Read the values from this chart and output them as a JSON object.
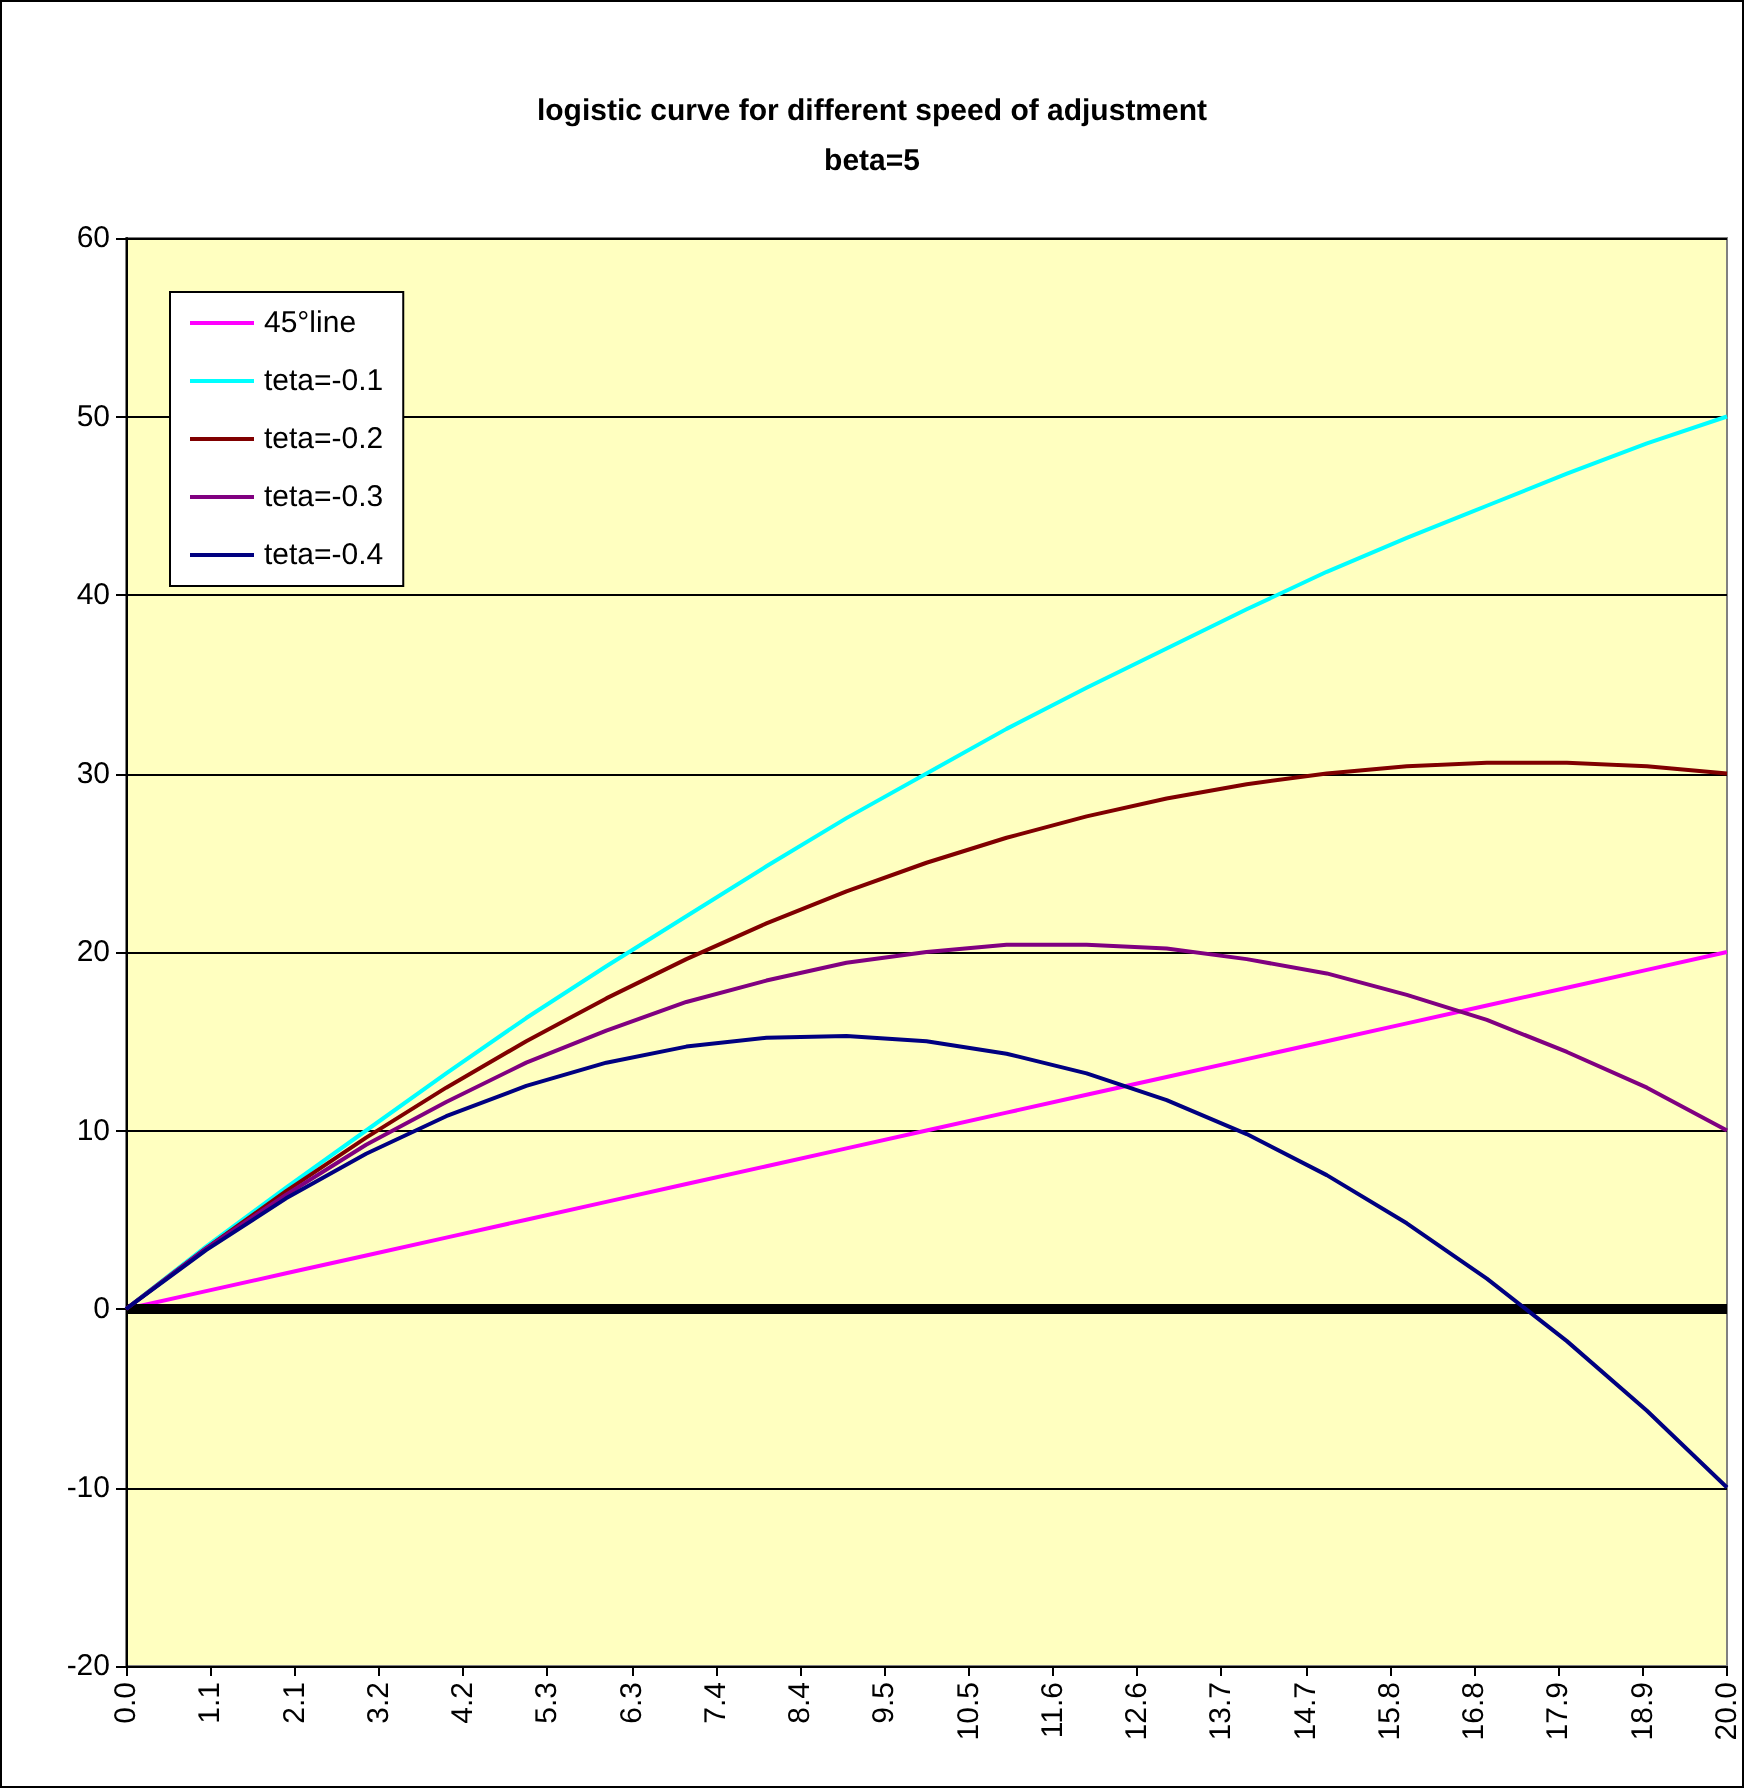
{
  "chart_data": {
    "type": "line",
    "title": "logistic curve for different speed of adjustment",
    "subtitle": "beta=5",
    "x": [
      0,
      1,
      2,
      3,
      4,
      5,
      6,
      7,
      8,
      9,
      10,
      11,
      12,
      13,
      14,
      15,
      16,
      17,
      18,
      19,
      20
    ],
    "series": [
      {
        "name": "45°line",
        "color": "#ff00ff",
        "values": [
          0,
          1,
          2,
          3,
          4,
          5,
          6,
          7,
          8,
          9,
          10,
          11,
          12,
          13,
          14,
          15,
          16,
          17,
          18,
          19,
          20
        ]
      },
      {
        "name": "teta=-0.1",
        "color": "#00ffff",
        "values": [
          0,
          3.5,
          6.8,
          10,
          13.2,
          16.3,
          19.2,
          22,
          24.8,
          27.5,
          30,
          32.5,
          34.8,
          37,
          39.2,
          41.3,
          43.2,
          45,
          46.8,
          48.5,
          50
        ]
      },
      {
        "name": "teta=-0.2",
        "color": "#800000",
        "values": [
          0,
          3.4,
          6.6,
          9.6,
          12.4,
          15,
          17.4,
          19.6,
          21.6,
          23.4,
          25,
          26.4,
          27.6,
          28.6,
          29.4,
          30,
          30.4,
          30.6,
          30.6,
          30.4,
          30
        ]
      },
      {
        "name": "teta=-0.3",
        "color": "#800080",
        "values": [
          0,
          3.4,
          6.4,
          9.2,
          11.6,
          13.8,
          15.6,
          17.2,
          18.4,
          19.4,
          20,
          20.4,
          20.4,
          20.2,
          19.6,
          18.8,
          17.6,
          16.2,
          14.4,
          12.4,
          10
        ]
      },
      {
        "name": "teta=-0.4",
        "color": "#000080",
        "values": [
          0,
          3.3,
          6.2,
          8.7,
          10.8,
          12.5,
          13.8,
          14.7,
          15.2,
          15.3,
          15,
          14.3,
          13.2,
          11.7,
          9.8,
          7.5,
          4.8,
          1.7,
          -1.8,
          -5.7,
          -10
        ]
      }
    ],
    "xlim": [
      0,
      20
    ],
    "xticks": [
      {
        "value": 0,
        "label": "0.0"
      },
      {
        "value": 1.0526,
        "label": "1.1"
      },
      {
        "value": 2.1053,
        "label": "2.1"
      },
      {
        "value": 3.1579,
        "label": "3.2"
      },
      {
        "value": 4.2105,
        "label": "4.2"
      },
      {
        "value": 5.2632,
        "label": "5.3"
      },
      {
        "value": 6.3158,
        "label": "6.3"
      },
      {
        "value": 7.3684,
        "label": "7.4"
      },
      {
        "value": 8.4211,
        "label": "8.4"
      },
      {
        "value": 9.4737,
        "label": "9.5"
      },
      {
        "value": 10.5263,
        "label": "10.5"
      },
      {
        "value": 11.5789,
        "label": "11.6"
      },
      {
        "value": 12.6316,
        "label": "12.6"
      },
      {
        "value": 13.6842,
        "label": "13.7"
      },
      {
        "value": 14.7368,
        "label": "14.7"
      },
      {
        "value": 15.7895,
        "label": "15.8"
      },
      {
        "value": 16.8421,
        "label": "16.8"
      },
      {
        "value": 17.8947,
        "label": "17.9"
      },
      {
        "value": 18.9474,
        "label": "18.9"
      },
      {
        "value": 20,
        "label": "20.0"
      }
    ],
    "ylim": [
      -20,
      60
    ],
    "yticks": [
      -20,
      -10,
      0,
      10,
      20,
      30,
      40,
      50,
      60
    ],
    "ref_lines": [
      {
        "axis": "y",
        "value": 0,
        "color": "#000000"
      }
    ],
    "grid": "y",
    "legend": "top left",
    "marker": "none",
    "line_style": "solid"
  }
}
